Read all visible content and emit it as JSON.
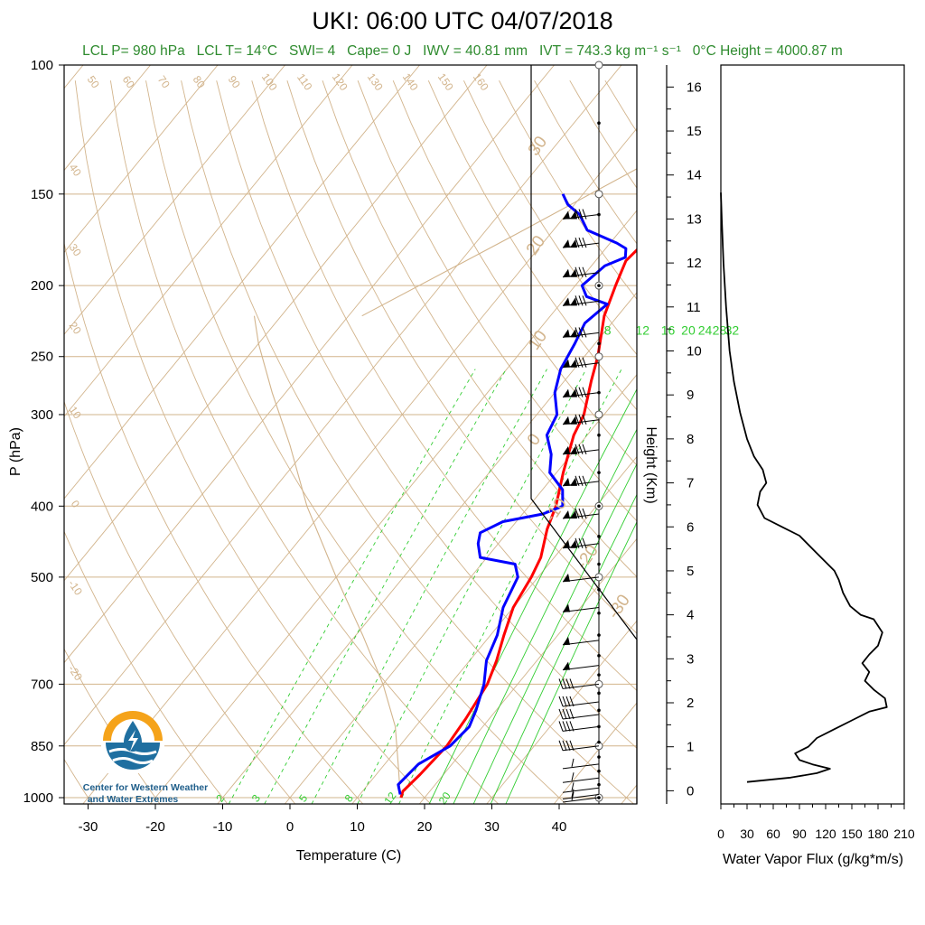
{
  "header": {
    "title": "UKI: 06:00 UTC 04/07/2018",
    "subtitle_parts": [
      "LCL P= 980 hPa",
      "LCL T= 14°C",
      "SWI= 4",
      "Cape= 0 J",
      "IWV = 40.81 mm",
      "IVT = 743.3 kg m⁻¹ s⁻¹",
      "0°C Height = 4000.87 m"
    ]
  },
  "logo": {
    "line1": "Center for Western Weather",
    "line2": "and Water Extremes",
    "colors": {
      "sun": "#f5a31a",
      "water": "#1f6fa0"
    }
  },
  "colors": {
    "temperature": "#ff0000",
    "dewpoint": "#0000ff",
    "adiabat": "#d2b48c",
    "mixing_ratio": "#32cd32",
    "wvflux": "#000000"
  },
  "chart_data": [
    {
      "type": "line",
      "name": "skew-t",
      "xlabel": "Temperature (C)",
      "ylabel": "P (hPa)",
      "xlim": [
        -33,
        52
      ],
      "ylim": [
        1020,
        100
      ],
      "y_scale": "log",
      "x_ticks": [
        -30,
        -20,
        -10,
        0,
        10,
        20,
        30,
        40
      ],
      "y_ticks": [
        100,
        150,
        200,
        250,
        300,
        400,
        500,
        700,
        850,
        1000
      ],
      "series": [
        {
          "role": "temperature",
          "points": [
            [
              16.5,
              1000
            ],
            [
              16,
              980
            ],
            [
              16.5,
              930
            ],
            [
              17,
              850
            ],
            [
              16.5,
              780
            ],
            [
              15.5,
              700
            ],
            [
              14,
              650
            ],
            [
              12,
              600
            ],
            [
              10,
              550
            ],
            [
              9,
              500
            ],
            [
              8,
              470
            ],
            [
              5.5,
              430
            ],
            [
              4,
              400
            ],
            [
              1,
              360
            ],
            [
              -2,
              320
            ],
            [
              -3,
              300
            ],
            [
              -6,
              270
            ],
            [
              -8,
              250
            ],
            [
              -12,
              220
            ],
            [
              -14,
              200
            ],
            [
              -15.5,
              185
            ],
            [
              -15,
              175
            ],
            [
              -12,
              165
            ],
            [
              -10,
              150
            ]
          ]
        },
        {
          "role": "dewpoint",
          "points": [
            [
              16,
              990
            ],
            [
              14.5,
              960
            ],
            [
              15,
              900
            ],
            [
              17.5,
              850
            ],
            [
              18,
              800
            ],
            [
              17,
              760
            ],
            [
              15,
              700
            ],
            [
              12.5,
              650
            ],
            [
              11,
              600
            ],
            [
              8.5,
              550
            ],
            [
              7,
              500
            ],
            [
              5,
              480
            ],
            [
              -1,
              470
            ],
            [
              -3,
              450
            ],
            [
              -4,
              435
            ],
            [
              -2,
              420
            ],
            [
              3,
              410
            ],
            [
              5,
              400
            ],
            [
              3,
              380
            ],
            [
              -1,
              360
            ],
            [
              -3,
              340
            ],
            [
              -6,
              320
            ],
            [
              -7,
              300
            ],
            [
              -10,
              280
            ],
            [
              -12,
              260
            ],
            [
              -13,
              240
            ],
            [
              -14,
              225
            ],
            [
              -13,
              212
            ],
            [
              -17,
              207
            ],
            [
              -19,
              200
            ],
            [
              -18,
              188
            ],
            [
              -16,
              183
            ],
            [
              -17,
              178
            ],
            [
              -19,
              175
            ],
            [
              -25,
              168
            ],
            [
              -28,
              160
            ],
            [
              -31,
              155
            ],
            [
              -33,
              150
            ]
          ]
        }
      ],
      "mixing_ratio_labels": [
        "8",
        "12",
        "16",
        "20",
        "24",
        "28",
        "32"
      ],
      "mixing_ratio_low_labels": [
        "2",
        "3",
        "5",
        "8",
        "12",
        "20"
      ],
      "adiabat_labels": [
        "50",
        "60",
        "70",
        "80",
        "90",
        "100",
        "110",
        "120",
        "130",
        "140",
        "150",
        "160"
      ],
      "left_edge_labels": [
        "40",
        "30",
        "20",
        "10",
        "0",
        "-10",
        "-20"
      ],
      "isotherm_labels": [
        "30",
        "20",
        "10",
        "0",
        "-10",
        "-20",
        "-30"
      ],
      "wind_levels": [
        160,
        175,
        192,
        210,
        232,
        255,
        280,
        305,
        335,
        370,
        410,
        450,
        500,
        550,
        610,
        660,
        700,
        740,
        770,
        800,
        850,
        900,
        940,
        970,
        990,
        1000
      ]
    },
    {
      "type": "line",
      "name": "water-vapor-flux",
      "xlabel": "Water Vapor Flux (g/kg*m/s)",
      "ylabel": "Height (Km)",
      "xlim": [
        0,
        210
      ],
      "ylim": [
        -0.3,
        16.5
      ],
      "x_ticks": [
        0,
        30,
        60,
        90,
        120,
        150,
        180,
        210
      ],
      "y_ticks": [
        0,
        1,
        2,
        3,
        4,
        5,
        6,
        7,
        8,
        9,
        10,
        11,
        12,
        13,
        14,
        15,
        16
      ],
      "points": [
        [
          30,
          0.2
        ],
        [
          80,
          0.3
        ],
        [
          110,
          0.4
        ],
        [
          125,
          0.5
        ],
        [
          105,
          0.6
        ],
        [
          90,
          0.7
        ],
        [
          85,
          0.85
        ],
        [
          100,
          1.0
        ],
        [
          110,
          1.2
        ],
        [
          130,
          1.4
        ],
        [
          150,
          1.6
        ],
        [
          170,
          1.8
        ],
        [
          190,
          1.9
        ],
        [
          188,
          2.1
        ],
        [
          175,
          2.3
        ],
        [
          165,
          2.5
        ],
        [
          170,
          2.7
        ],
        [
          162,
          2.9
        ],
        [
          170,
          3.1
        ],
        [
          180,
          3.3
        ],
        [
          185,
          3.6
        ],
        [
          175,
          3.9
        ],
        [
          160,
          4.0
        ],
        [
          148,
          4.2
        ],
        [
          140,
          4.5
        ],
        [
          135,
          4.8
        ],
        [
          130,
          5.0
        ],
        [
          110,
          5.4
        ],
        [
          90,
          5.8
        ],
        [
          70,
          6.0
        ],
        [
          50,
          6.2
        ],
        [
          42,
          6.5
        ],
        [
          45,
          6.8
        ],
        [
          52,
          7.0
        ],
        [
          48,
          7.3
        ],
        [
          38,
          7.6
        ],
        [
          30,
          8.0
        ],
        [
          22,
          8.6
        ],
        [
          15,
          9.3
        ],
        [
          10,
          10.0
        ],
        [
          6,
          11.0
        ],
        [
          3,
          12.0
        ],
        [
          1,
          13.0
        ],
        [
          0,
          13.6
        ]
      ]
    }
  ]
}
